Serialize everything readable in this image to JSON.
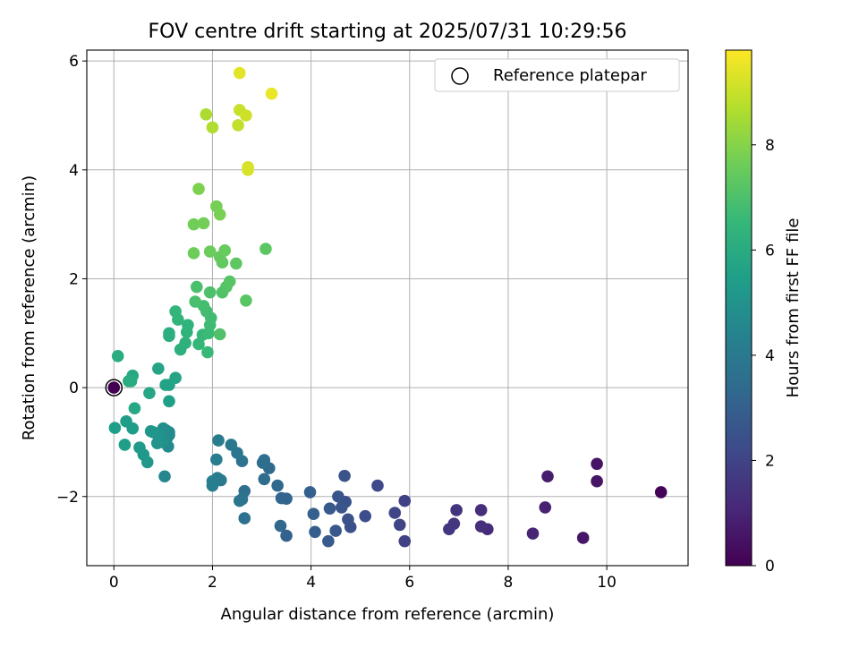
{
  "chart_data": {
    "type": "scatter",
    "title": "FOV centre drift starting at 2025/07/31 10:29:56",
    "xlabel": "Angular distance from reference (arcmin)",
    "ylabel": "Rotation from reference (arcmin)",
    "xlim": [
      -0.55,
      11.65
    ],
    "ylim": [
      -3.27,
      6.2
    ],
    "xticks": [
      0,
      2,
      4,
      6,
      8,
      10
    ],
    "yticks": [
      -2,
      0,
      2,
      4,
      6
    ],
    "xtick_labels": [
      "0",
      "2",
      "4",
      "6",
      "8",
      "10"
    ],
    "ytick_labels": [
      "−2",
      "0",
      "2",
      "4",
      "6"
    ],
    "grid": true,
    "legend": {
      "placement": "top-right",
      "entries": [
        "Reference platepar"
      ]
    },
    "colorbar": {
      "label": "Hours from first FF file",
      "colormap": "viridis",
      "range": [
        0,
        9.8
      ],
      "ticks": [
        0,
        2,
        4,
        6,
        8
      ],
      "tick_labels": [
        "0",
        "2",
        "4",
        "6",
        "8"
      ]
    },
    "reference_point": {
      "x": 0,
      "y": 0
    },
    "points": [
      [
        11.1,
        -1.92,
        0.1
      ],
      [
        9.8,
        -1.4,
        0.5
      ],
      [
        9.8,
        -1.72,
        0.55
      ],
      [
        9.52,
        -2.76,
        0.6
      ],
      [
        8.8,
        -1.63,
        0.8
      ],
      [
        8.75,
        -2.2,
        0.9
      ],
      [
        8.5,
        -2.68,
        1.0
      ],
      [
        7.58,
        -2.6,
        1.2
      ],
      [
        7.45,
        -2.25,
        1.3
      ],
      [
        7.45,
        -2.55,
        1.35
      ],
      [
        6.95,
        -2.25,
        1.5
      ],
      [
        6.9,
        -2.5,
        1.55
      ],
      [
        6.8,
        -2.6,
        1.6
      ],
      [
        5.9,
        -2.82,
        1.9
      ],
      [
        5.9,
        -2.08,
        1.95
      ],
      [
        5.8,
        -2.52,
        2.0
      ],
      [
        5.7,
        -2.3,
        2.05
      ],
      [
        5.35,
        -1.8,
        2.2
      ],
      [
        5.1,
        -2.36,
        2.3
      ],
      [
        4.8,
        -2.56,
        2.4
      ],
      [
        4.75,
        -2.42,
        2.45
      ],
      [
        4.7,
        -2.1,
        2.5
      ],
      [
        4.68,
        -1.62,
        2.55
      ],
      [
        4.62,
        -2.2,
        2.6
      ],
      [
        4.55,
        -2.0,
        2.65
      ],
      [
        4.5,
        -2.63,
        2.7
      ],
      [
        4.38,
        -2.22,
        2.75
      ],
      [
        4.35,
        -2.82,
        2.8
      ],
      [
        4.08,
        -2.65,
        2.9
      ],
      [
        4.05,
        -2.32,
        2.95
      ],
      [
        3.98,
        -1.92,
        3.0
      ],
      [
        3.5,
        -2.72,
        3.1
      ],
      [
        3.5,
        -2.04,
        3.15
      ],
      [
        3.4,
        -2.03,
        3.2
      ],
      [
        3.38,
        -2.54,
        3.25
      ],
      [
        3.32,
        -1.8,
        3.3
      ],
      [
        3.15,
        -1.48,
        3.4
      ],
      [
        3.05,
        -1.68,
        3.45
      ],
      [
        3.05,
        -1.33,
        3.5
      ],
      [
        3.02,
        -1.38,
        3.55
      ],
      [
        2.65,
        -1.9,
        3.6
      ],
      [
        2.65,
        -2.4,
        3.65
      ],
      [
        2.6,
        -1.35,
        3.7
      ],
      [
        2.6,
        -2.05,
        3.75
      ],
      [
        2.55,
        -2.08,
        3.8
      ],
      [
        2.5,
        -1.2,
        3.85
      ],
      [
        2.38,
        -1.05,
        3.9
      ],
      [
        2.17,
        -1.7,
        4.0
      ],
      [
        2.12,
        -0.97,
        4.05
      ],
      [
        2.1,
        -1.66,
        4.1
      ],
      [
        2.08,
        -1.32,
        4.15
      ],
      [
        2.0,
        -1.8,
        4.2
      ],
      [
        2.0,
        -1.72,
        4.25
      ],
      [
        1.03,
        -1.63,
        4.5
      ],
      [
        1.12,
        -0.87,
        4.55
      ],
      [
        1.12,
        -0.82,
        4.6
      ],
      [
        1.1,
        -1.08,
        4.65
      ],
      [
        1.08,
        -0.92,
        4.7
      ],
      [
        1.05,
        -0.78,
        4.75
      ],
      [
        1.02,
        -0.95,
        4.8
      ],
      [
        1.0,
        -0.75,
        4.85
      ],
      [
        0.98,
        -1.0,
        4.9
      ],
      [
        0.92,
        -0.95,
        4.95
      ],
      [
        0.9,
        -0.87,
        5.0
      ],
      [
        0.88,
        -1.02,
        5.05
      ],
      [
        0.8,
        -0.82,
        5.1
      ],
      [
        0.75,
        -0.8,
        5.15
      ],
      [
        0.68,
        -1.37,
        5.2
      ],
      [
        0.6,
        -1.23,
        5.25
      ],
      [
        0.52,
        -1.1,
        5.3
      ],
      [
        0.38,
        -0.75,
        5.35
      ],
      [
        0.25,
        -0.62,
        5.4
      ],
      [
        0.22,
        -1.05,
        5.45
      ],
      [
        0.02,
        -0.74,
        5.5
      ],
      [
        1.12,
        -0.25,
        5.55
      ],
      [
        1.12,
        0.05,
        5.6
      ],
      [
        1.05,
        0.05,
        5.65
      ],
      [
        1.25,
        0.18,
        5.7
      ],
      [
        0.9,
        0.35,
        5.75
      ],
      [
        0.72,
        -0.1,
        5.8
      ],
      [
        0.42,
        -0.38,
        5.85
      ],
      [
        0.38,
        0.22,
        5.9
      ],
      [
        0.35,
        0.12,
        5.95
      ],
      [
        0.3,
        0.12,
        6.0
      ],
      [
        0.08,
        0.58,
        6.05
      ],
      [
        1.12,
        0.95,
        6.1
      ],
      [
        1.12,
        1.0,
        6.15
      ],
      [
        1.35,
        0.7,
        6.2
      ],
      [
        1.45,
        0.82,
        6.25
      ],
      [
        1.48,
        1.02,
        6.3
      ],
      [
        1.5,
        1.15,
        6.35
      ],
      [
        1.3,
        1.25,
        6.4
      ],
      [
        1.25,
        1.4,
        6.45
      ],
      [
        1.72,
        0.8,
        6.5
      ],
      [
        1.8,
        0.97,
        6.55
      ],
      [
        1.9,
        0.65,
        6.6
      ],
      [
        1.92,
        1.0,
        6.65
      ],
      [
        1.95,
        1.15,
        6.7
      ],
      [
        1.97,
        1.28,
        6.75
      ],
      [
        1.88,
        1.4,
        6.8
      ],
      [
        1.82,
        1.5,
        6.85
      ],
      [
        1.65,
        1.58,
        6.9
      ],
      [
        1.68,
        1.85,
        6.95
      ],
      [
        1.95,
        1.75,
        7.0
      ],
      [
        2.15,
        0.98,
        7.05
      ],
      [
        2.2,
        1.75,
        7.1
      ],
      [
        2.28,
        1.85,
        7.15
      ],
      [
        2.35,
        1.95,
        7.2
      ],
      [
        2.68,
        1.6,
        7.25
      ],
      [
        3.08,
        2.55,
        7.3
      ],
      [
        2.48,
        2.28,
        7.35
      ],
      [
        2.2,
        2.3,
        7.4
      ],
      [
        2.15,
        2.4,
        7.45
      ],
      [
        2.25,
        2.52,
        7.5
      ],
      [
        1.95,
        2.5,
        7.55
      ],
      [
        1.62,
        2.47,
        7.6
      ],
      [
        1.62,
        3.0,
        7.65
      ],
      [
        1.82,
        3.02,
        7.7
      ],
      [
        2.08,
        3.33,
        7.75
      ],
      [
        2.15,
        3.18,
        7.8
      ],
      [
        1.72,
        3.65,
        7.85
      ],
      [
        1.87,
        5.02,
        8.6
      ],
      [
        2.0,
        4.78,
        8.65
      ],
      [
        2.52,
        4.82,
        8.9
      ],
      [
        2.55,
        5.1,
        9.0
      ],
      [
        2.68,
        5.0,
        9.1
      ],
      [
        2.72,
        4.05,
        9.2
      ],
      [
        2.72,
        4.0,
        9.25
      ],
      [
        2.55,
        5.78,
        9.4
      ],
      [
        3.2,
        5.4,
        9.5
      ]
    ]
  }
}
